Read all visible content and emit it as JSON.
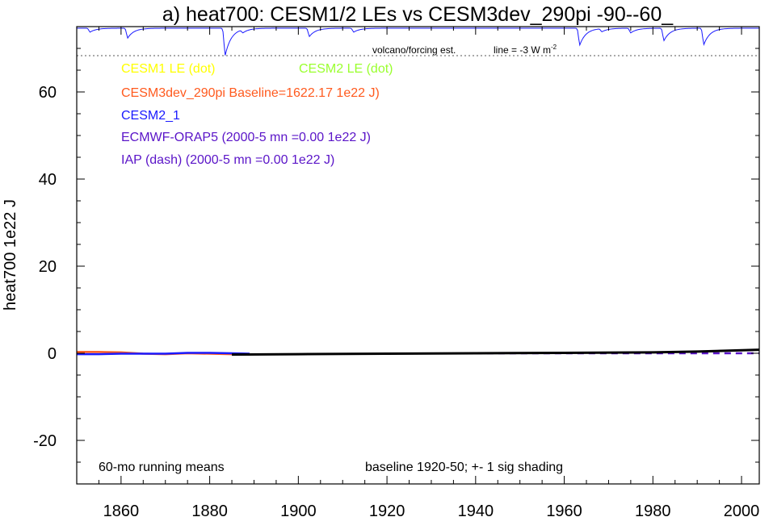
{
  "chart_data": {
    "type": "line",
    "title": "a) heat700: CESM1/2 LEs vs CESM3dev_290pi -90--60_",
    "ylabel": "heat700 1e22 J",
    "xlim": [
      1850,
      2004
    ],
    "ylim": [
      -30,
      75
    ],
    "x_ticks": [
      1860,
      1880,
      1900,
      1920,
      1940,
      1960,
      1980,
      2000
    ],
    "y_ticks": [
      -20,
      0,
      20,
      40,
      60
    ],
    "grid": false,
    "volcano_label": "volcano/forcing est.",
    "volcano_scale_label": "line = -3 W m",
    "volcano_scale_sup": "-2",
    "volcano_series": {
      "base": 75,
      "events": [
        {
          "x": 1853,
          "depth": 1.5
        },
        {
          "x": 1861.5,
          "depth": 3.8
        },
        {
          "x": 1883.5,
          "depth": 10.5
        },
        {
          "x": 1887.5,
          "depth": 1.2
        },
        {
          "x": 1902.5,
          "depth": 3.2
        },
        {
          "x": 1912.5,
          "depth": 1.5
        },
        {
          "x": 1963.5,
          "depth": 6.5
        },
        {
          "x": 1968.5,
          "depth": 1.2
        },
        {
          "x": 1975,
          "depth": 1.8
        },
        {
          "x": 1982.5,
          "depth": 4.8
        },
        {
          "x": 1991.5,
          "depth": 6.3
        }
      ]
    },
    "legend": [
      {
        "label": "CESM1 LE (dot)",
        "color": "#ffff00"
      },
      {
        "label": "CESM2 LE (dot)",
        "color": "#9aff2e"
      },
      {
        "label": "CESM3dev_290pi Baseline=1622.17 1e22 J)",
        "color": "#ff5a1e"
      },
      {
        "label": "CESM2_1",
        "color": "#1a1aff"
      },
      {
        "label": "ECMWF-ORAP5 (2000-5 mn =0.00 1e22 J)",
        "color": "#5a14c8"
      },
      {
        "label": "IAP (dash) (2000-5 mn =0.00 1e22 J)",
        "color": "#5a14c8"
      }
    ],
    "notes": {
      "left": "60-mo running means",
      "right": "baseline 1920-50; +- 1 sig shading"
    },
    "series": [
      {
        "name": "CESM3dev_290pi Baseline=1622.17 1e22 J)",
        "color": "#ff5a1e",
        "style": "solid",
        "x": [
          1850,
          1855,
          1860,
          1865,
          1870,
          1875,
          1880,
          1885,
          1889
        ],
        "y": [
          0.3,
          0.3,
          0.2,
          -0.1,
          -0.2,
          0.0,
          -0.1,
          -0.2,
          -0.3
        ]
      },
      {
        "name": "CESM2_1",
        "color": "#1a1aff",
        "style": "solid",
        "x": [
          1850,
          1855,
          1860,
          1865,
          1870,
          1875,
          1880,
          1885,
          1889
        ],
        "y": [
          -0.2,
          -0.2,
          -0.1,
          -0.1,
          -0.1,
          0.1,
          0.1,
          0.0,
          -0.1
        ]
      },
      {
        "name": "IAP (dash) (2000-5 mn =0.00 1e22 J)",
        "color": "#5a14c8",
        "style": "dash",
        "x": [
          1940,
          1950,
          1960,
          1970,
          1980,
          1990,
          2004
        ],
        "y": [
          0.0,
          0.0,
          0.0,
          0.0,
          0.0,
          0.0,
          0.0
        ]
      },
      {
        "name": "",
        "color": "#000000",
        "style": "solid",
        "x": [
          1885,
          1900,
          1920,
          1940,
          1960,
          1980,
          1990,
          2004
        ],
        "y": [
          -0.3,
          -0.2,
          -0.1,
          0.0,
          0.1,
          0.2,
          0.4,
          0.8
        ]
      }
    ]
  }
}
